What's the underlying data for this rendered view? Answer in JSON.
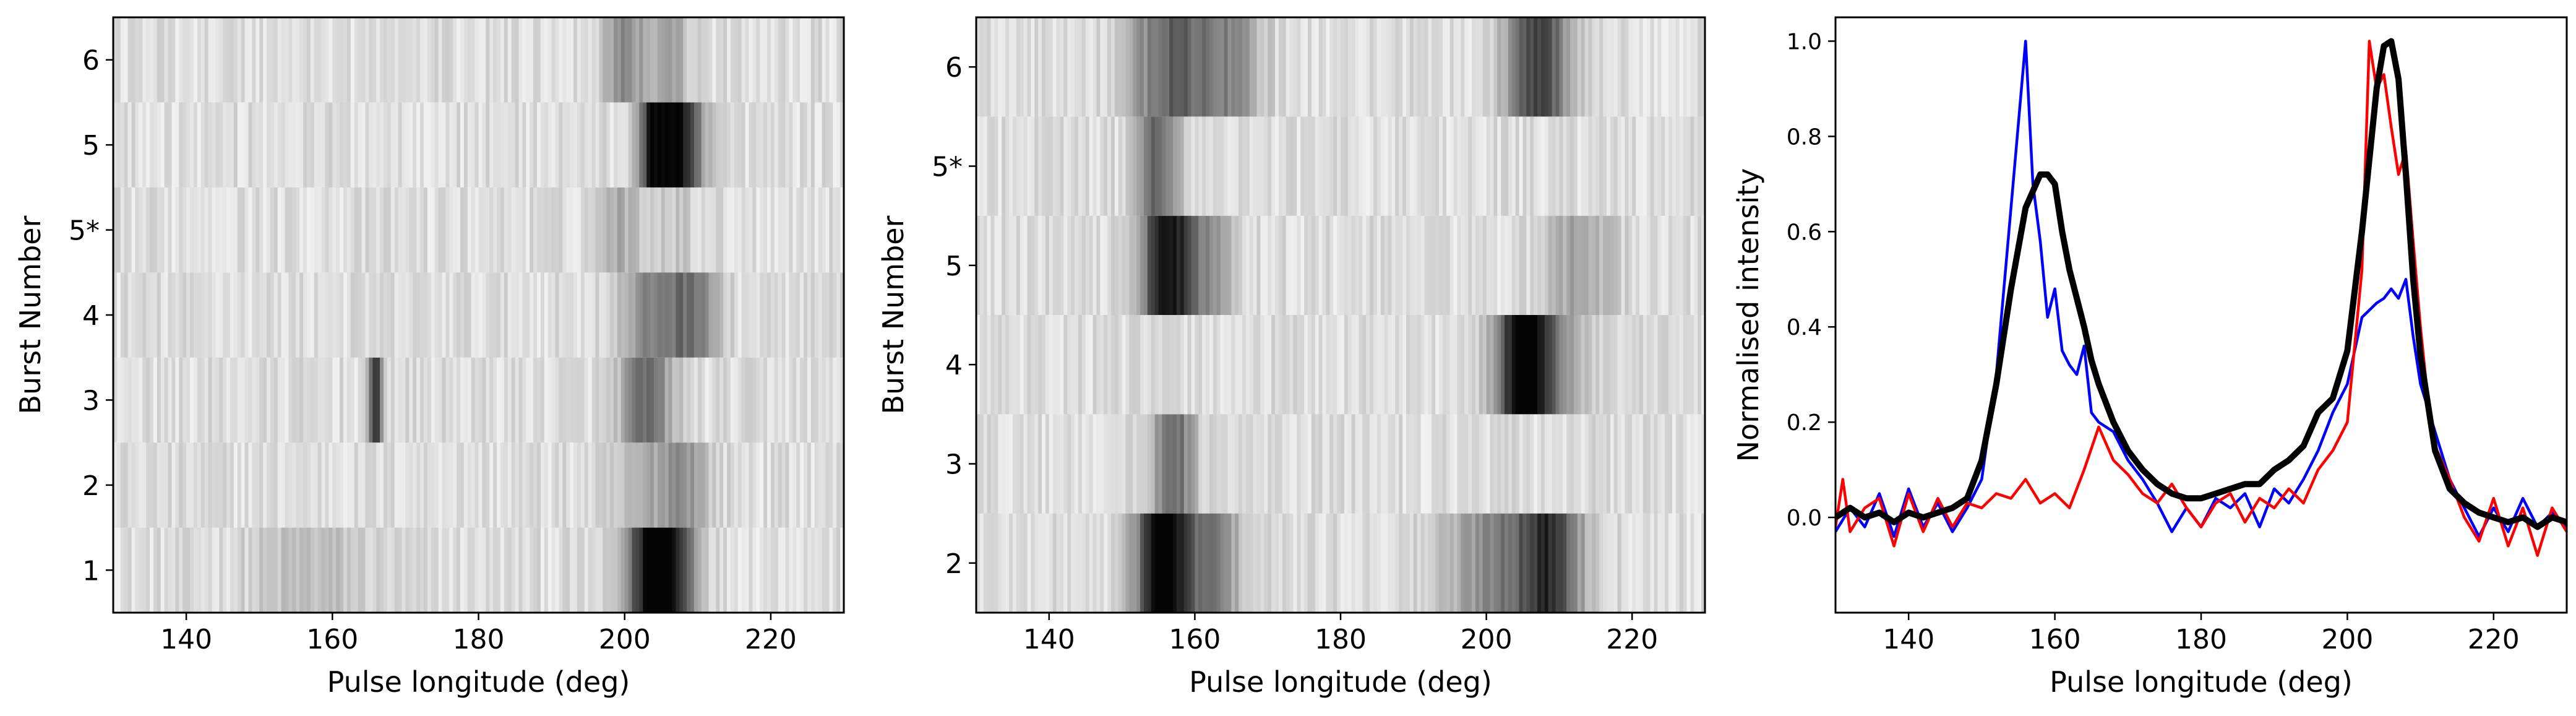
{
  "figure": {
    "panels": [
      "heatmap-left",
      "heatmap-middle",
      "profiles"
    ]
  },
  "chart_data": [
    {
      "type": "heatmap",
      "title": "",
      "xlabel": "Pulse longitude (deg)",
      "ylabel": "Burst Number",
      "xlim": [
        130,
        230
      ],
      "xticks": [
        "140",
        "160",
        "180",
        "200",
        "220"
      ],
      "rows": [
        "1",
        "2",
        "3",
        "4",
        "5*",
        "5",
        "6"
      ],
      "colormap": "gray_r",
      "rows_features": [
        {
          "label": "1",
          "peaks": [
            {
              "center": 204,
              "width": 2.5,
              "amp": 0.95
            },
            {
              "center": 208,
              "width": 2.0,
              "amp": 0.35
            },
            {
              "center": 157,
              "width": 6,
              "amp": 0.12
            }
          ]
        },
        {
          "label": "2",
          "peaks": [
            {
              "center": 208,
              "width": 2.5,
              "amp": 0.3
            },
            {
              "center": 203,
              "width": 3,
              "amp": 0.15
            }
          ]
        },
        {
          "label": "3",
          "peaks": [
            {
              "center": 166,
              "width": 0.7,
              "amp": 0.65
            },
            {
              "center": 203,
              "width": 2.5,
              "amp": 0.45
            }
          ]
        },
        {
          "label": "4",
          "peaks": [
            {
              "center": 205,
              "width": 3.5,
              "amp": 0.4
            },
            {
              "center": 210,
              "width": 2,
              "amp": 0.3
            }
          ]
        },
        {
          "label": "5*",
          "peaks": [
            {
              "center": 199,
              "width": 2,
              "amp": 0.2
            },
            {
              "center": 206,
              "width": 3,
              "amp": 0.1
            }
          ]
        },
        {
          "label": "5",
          "peaks": [
            {
              "center": 207,
              "width": 2.5,
              "amp": 0.9
            },
            {
              "center": 203.5,
              "width": 1.2,
              "amp": 0.45
            }
          ]
        },
        {
          "label": "6",
          "peaks": [
            {
              "center": 200,
              "width": 2,
              "amp": 0.35
            },
            {
              "center": 206,
              "width": 2,
              "amp": 0.25
            }
          ]
        }
      ]
    },
    {
      "type": "heatmap",
      "title": "",
      "xlabel": "Pulse longitude (deg)",
      "ylabel": "Burst Number",
      "xlim": [
        130,
        230
      ],
      "xticks": [
        "140",
        "160",
        "180",
        "200",
        "220"
      ],
      "rows": [
        "2",
        "3",
        "4",
        "5",
        "5*",
        "6"
      ],
      "colormap": "gray_r",
      "rows_features": [
        {
          "label": "2",
          "peaks": [
            {
              "center": 155.5,
              "width": 2.5,
              "amp": 0.95
            },
            {
              "center": 162,
              "width": 3,
              "amp": 0.4
            },
            {
              "center": 204,
              "width": 6,
              "amp": 0.45
            },
            {
              "center": 209,
              "width": 2.5,
              "amp": 0.4
            }
          ]
        },
        {
          "label": "3",
          "peaks": [
            {
              "center": 157,
              "width": 2,
              "amp": 0.5
            }
          ]
        },
        {
          "label": "4",
          "peaks": [
            {
              "center": 205,
              "width": 2.5,
              "amp": 0.9
            },
            {
              "center": 209,
              "width": 3,
              "amp": 0.3
            }
          ]
        },
        {
          "label": "5",
          "peaks": [
            {
              "center": 156,
              "width": 2.5,
              "amp": 0.75
            },
            {
              "center": 161,
              "width": 3,
              "amp": 0.3
            },
            {
              "center": 213,
              "width": 3,
              "amp": 0.25
            }
          ]
        },
        {
          "label": "5*",
          "peaks": [
            {
              "center": 155,
              "width": 2,
              "amp": 0.5
            }
          ]
        },
        {
          "label": "6",
          "peaks": [
            {
              "center": 157,
              "width": 4,
              "amp": 0.5
            },
            {
              "center": 165,
              "width": 3,
              "amp": 0.3
            },
            {
              "center": 207,
              "width": 3,
              "amp": 0.65
            }
          ]
        }
      ]
    },
    {
      "type": "line",
      "title": "",
      "xlabel": "Pulse longitude (deg)",
      "ylabel": "Normalised intensity",
      "xlim": [
        130,
        230
      ],
      "ylim": [
        -0.2,
        1.05
      ],
      "xticks": [
        "140",
        "160",
        "180",
        "200",
        "220"
      ],
      "yticks": [
        "0.0",
        "0.2",
        "0.4",
        "0.6",
        "0.8",
        "1.0"
      ],
      "series": [
        {
          "color": "#0000ff",
          "stroke": "thin",
          "points": [
            [
              130,
              -0.03
            ],
            [
              132,
              0.02
            ],
            [
              134,
              -0.02
            ],
            [
              136,
              0.05
            ],
            [
              138,
              -0.04
            ],
            [
              140,
              0.06
            ],
            [
              142,
              -0.02
            ],
            [
              144,
              0.03
            ],
            [
              146,
              -0.03
            ],
            [
              148,
              0.02
            ],
            [
              150,
              0.08
            ],
            [
              152,
              0.3
            ],
            [
              154,
              0.65
            ],
            [
              156,
              1.0
            ],
            [
              157,
              0.7
            ],
            [
              158,
              0.58
            ],
            [
              159,
              0.42
            ],
            [
              160,
              0.48
            ],
            [
              161,
              0.35
            ],
            [
              162,
              0.32
            ],
            [
              163,
              0.3
            ],
            [
              164,
              0.36
            ],
            [
              165,
              0.22
            ],
            [
              166,
              0.2
            ],
            [
              168,
              0.18
            ],
            [
              170,
              0.12
            ],
            [
              172,
              0.08
            ],
            [
              174,
              0.03
            ],
            [
              176,
              -0.03
            ],
            [
              178,
              0.02
            ],
            [
              180,
              -0.02
            ],
            [
              182,
              0.04
            ],
            [
              184,
              0.02
            ],
            [
              186,
              0.05
            ],
            [
              188,
              -0.02
            ],
            [
              190,
              0.06
            ],
            [
              192,
              0.03
            ],
            [
              194,
              0.08
            ],
            [
              196,
              0.14
            ],
            [
              198,
              0.22
            ],
            [
              200,
              0.28
            ],
            [
              202,
              0.42
            ],
            [
              204,
              0.45
            ],
            [
              205,
              0.46
            ],
            [
              206,
              0.48
            ],
            [
              207,
              0.46
            ],
            [
              208,
              0.5
            ],
            [
              209,
              0.38
            ],
            [
              210,
              0.28
            ],
            [
              212,
              0.18
            ],
            [
              214,
              0.08
            ],
            [
              216,
              0.02
            ],
            [
              218,
              -0.04
            ],
            [
              220,
              0.02
            ],
            [
              222,
              -0.03
            ],
            [
              224,
              0.04
            ],
            [
              226,
              -0.02
            ],
            [
              228,
              0.01
            ],
            [
              230,
              -0.02
            ]
          ]
        },
        {
          "color": "#ff0000",
          "stroke": "thin",
          "points": [
            [
              130,
              -0.02
            ],
            [
              131,
              0.08
            ],
            [
              132,
              -0.03
            ],
            [
              134,
              0.02
            ],
            [
              136,
              0.04
            ],
            [
              138,
              -0.06
            ],
            [
              140,
              0.05
            ],
            [
              142,
              -0.03
            ],
            [
              144,
              0.04
            ],
            [
              146,
              -0.02
            ],
            [
              148,
              0.03
            ],
            [
              150,
              0.02
            ],
            [
              152,
              0.05
            ],
            [
              154,
              0.04
            ],
            [
              156,
              0.08
            ],
            [
              158,
              0.03
            ],
            [
              160,
              0.05
            ],
            [
              162,
              0.02
            ],
            [
              164,
              0.1
            ],
            [
              166,
              0.19
            ],
            [
              168,
              0.12
            ],
            [
              170,
              0.09
            ],
            [
              172,
              0.05
            ],
            [
              174,
              0.03
            ],
            [
              176,
              0.07
            ],
            [
              178,
              0.02
            ],
            [
              180,
              -0.02
            ],
            [
              182,
              0.03
            ],
            [
              184,
              0.05
            ],
            [
              186,
              -0.01
            ],
            [
              188,
              0.04
            ],
            [
              190,
              0.02
            ],
            [
              192,
              0.06
            ],
            [
              194,
              0.03
            ],
            [
              196,
              0.1
            ],
            [
              198,
              0.14
            ],
            [
              200,
              0.2
            ],
            [
              202,
              0.52
            ],
            [
              203,
              1.0
            ],
            [
              204,
              0.9
            ],
            [
              205,
              0.93
            ],
            [
              206,
              0.82
            ],
            [
              207,
              0.72
            ],
            [
              208,
              0.77
            ],
            [
              209,
              0.58
            ],
            [
              210,
              0.4
            ],
            [
              211,
              0.25
            ],
            [
              212,
              0.15
            ],
            [
              214,
              0.08
            ],
            [
              216,
              0.0
            ],
            [
              218,
              -0.05
            ],
            [
              220,
              0.04
            ],
            [
              222,
              -0.06
            ],
            [
              224,
              0.02
            ],
            [
              226,
              -0.08
            ],
            [
              228,
              0.02
            ],
            [
              230,
              -0.03
            ]
          ]
        },
        {
          "color": "#000000",
          "stroke": "thick",
          "points": [
            [
              130,
              0.0
            ],
            [
              132,
              0.02
            ],
            [
              134,
              0.0
            ],
            [
              136,
              0.01
            ],
            [
              138,
              -0.01
            ],
            [
              140,
              0.01
            ],
            [
              142,
              0.0
            ],
            [
              144,
              0.01
            ],
            [
              146,
              0.02
            ],
            [
              148,
              0.04
            ],
            [
              150,
              0.12
            ],
            [
              152,
              0.28
            ],
            [
              154,
              0.48
            ],
            [
              156,
              0.65
            ],
            [
              158,
              0.72
            ],
            [
              159,
              0.72
            ],
            [
              160,
              0.7
            ],
            [
              161,
              0.6
            ],
            [
              162,
              0.52
            ],
            [
              163,
              0.46
            ],
            [
              164,
              0.4
            ],
            [
              165,
              0.33
            ],
            [
              166,
              0.28
            ],
            [
              168,
              0.2
            ],
            [
              170,
              0.14
            ],
            [
              172,
              0.1
            ],
            [
              174,
              0.07
            ],
            [
              176,
              0.05
            ],
            [
              178,
              0.04
            ],
            [
              180,
              0.04
            ],
            [
              182,
              0.05
            ],
            [
              184,
              0.06
            ],
            [
              186,
              0.07
            ],
            [
              188,
              0.07
            ],
            [
              190,
              0.1
            ],
            [
              192,
              0.12
            ],
            [
              194,
              0.15
            ],
            [
              196,
              0.22
            ],
            [
              198,
              0.25
            ],
            [
              200,
              0.35
            ],
            [
              202,
              0.6
            ],
            [
              204,
              0.9
            ],
            [
              205,
              0.99
            ],
            [
              206,
              1.0
            ],
            [
              207,
              0.92
            ],
            [
              208,
              0.72
            ],
            [
              209,
              0.5
            ],
            [
              210,
              0.34
            ],
            [
              212,
              0.14
            ],
            [
              214,
              0.06
            ],
            [
              216,
              0.03
            ],
            [
              218,
              0.01
            ],
            [
              220,
              0.0
            ],
            [
              222,
              -0.01
            ],
            [
              224,
              0.0
            ],
            [
              226,
              -0.02
            ],
            [
              228,
              0.0
            ],
            [
              230,
              -0.01
            ]
          ]
        }
      ]
    }
  ]
}
